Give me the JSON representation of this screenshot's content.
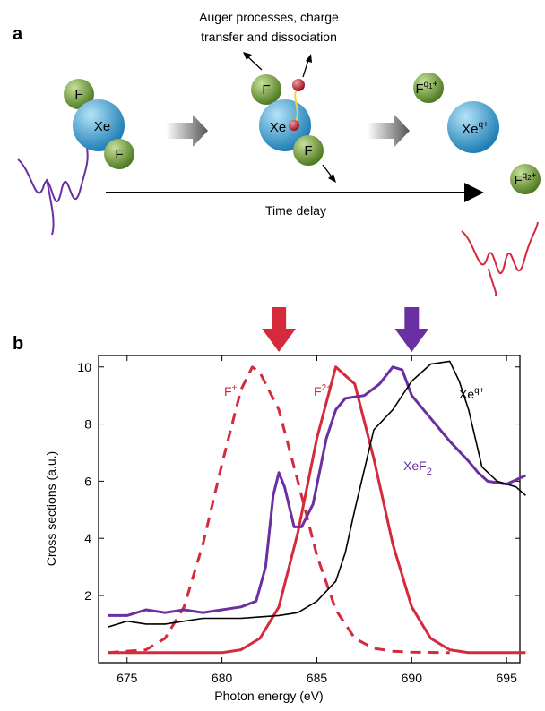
{
  "panel_a": {
    "label": "a",
    "caption_lines": [
      "Auger processes, charge",
      "transfer and dissociation"
    ],
    "stage1": {
      "f_top": "F",
      "xe": "Xe",
      "f_bottom": "F"
    },
    "stage2": {
      "f_top": "F",
      "xe": "Xe",
      "f_bottom": "F"
    },
    "stage3": {
      "f_ion": {
        "base": "F",
        "sup": "q",
        "sup_sub": "1",
        "sup_tail": "+"
      },
      "xe_ion": {
        "base": "Xe",
        "sup": "q+"
      }
    },
    "probe_f_ion": {
      "base": "F",
      "sup": "q",
      "sup_sub": "2",
      "sup_tail": "+"
    },
    "time_axis": "Time delay"
  },
  "chart_data": {
    "type": "line",
    "panel_label": "b",
    "xlabel": "Photon energy (eV)",
    "ylabel": "Cross sections (a.u.)",
    "xlim": [
      673.5,
      695.7
    ],
    "ylim": [
      -0.35,
      10.4
    ],
    "xticks": [
      675,
      680,
      685,
      690,
      695
    ],
    "yticks": [
      2,
      4,
      6,
      8,
      10
    ],
    "arrows": [
      {
        "x": 683,
        "color": "#d42a3c"
      },
      {
        "x": 690,
        "color": "#6a2fa0"
      }
    ],
    "series": [
      {
        "name": "F",
        "name_sup": "+",
        "color": "#d42a3c",
        "dashed": true,
        "x": [
          674,
          676,
          677,
          678,
          679,
          680,
          681,
          681.6,
          682,
          683,
          684,
          685,
          686,
          687,
          688,
          689,
          690,
          692
        ],
        "values": [
          0,
          0.1,
          0.5,
          1.6,
          3.8,
          6.6,
          9.2,
          10,
          9.8,
          8.5,
          6,
          3.4,
          1.5,
          0.5,
          0.15,
          0.05,
          0.02,
          0
        ]
      },
      {
        "name": "F",
        "name_sup": "2+",
        "color": "#d42a3c",
        "dashed": false,
        "x": [
          674,
          680,
          681,
          682,
          683,
          684,
          685,
          686,
          687,
          688,
          689,
          690,
          691,
          692,
          693,
          696
        ],
        "values": [
          0,
          0,
          0.1,
          0.5,
          1.6,
          4.2,
          7.5,
          10,
          9.4,
          6.8,
          3.8,
          1.6,
          0.5,
          0.1,
          0,
          0
        ]
      },
      {
        "name": "XeF",
        "name_sub": "2",
        "color": "#6a2fa0",
        "dashed": false,
        "x": [
          674,
          675,
          676,
          677,
          678,
          679,
          680,
          681,
          681.8,
          682.3,
          682.7,
          683,
          683.3,
          683.8,
          684.2,
          684.8,
          685.5,
          686,
          686.5,
          687.5,
          688.3,
          689,
          689.5,
          690,
          691,
          692,
          693,
          693.5,
          694,
          695,
          696
        ],
        "values": [
          1.3,
          1.3,
          1.5,
          1.4,
          1.5,
          1.4,
          1.5,
          1.6,
          1.8,
          3.0,
          5.5,
          6.3,
          5.8,
          4.4,
          4.4,
          5.2,
          7.5,
          8.5,
          8.9,
          9.0,
          9.4,
          10,
          9.9,
          9.0,
          8.2,
          7.4,
          6.7,
          6.3,
          6.0,
          5.9,
          6.2
        ]
      },
      {
        "name": "Xe",
        "name_sup": "q+",
        "color": "#000000",
        "dashed": false,
        "x": [
          674,
          675,
          676,
          677,
          678,
          679,
          680,
          681,
          682,
          683,
          684,
          685,
          686,
          686.5,
          687,
          688,
          689,
          690,
          690.5,
          691,
          692,
          692.5,
          693,
          693.7,
          694.5,
          695.5,
          696
        ],
        "values": [
          0.9,
          1.1,
          1.0,
          1.0,
          1.1,
          1.2,
          1.2,
          1.2,
          1.25,
          1.3,
          1.4,
          1.8,
          2.5,
          3.5,
          5,
          7.8,
          8.5,
          9.5,
          9.8,
          10.1,
          10.2,
          9.5,
          8.5,
          6.5,
          6,
          5.8,
          5.5
        ]
      }
    ]
  }
}
